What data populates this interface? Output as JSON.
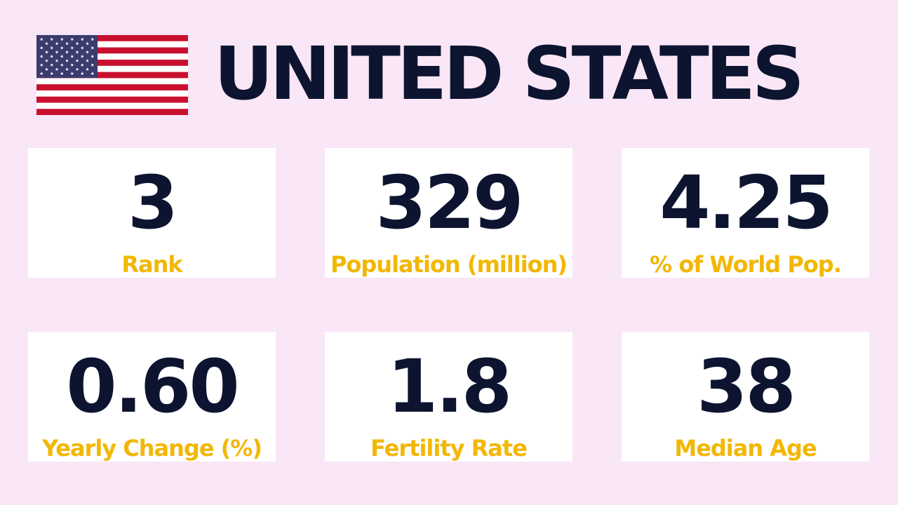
{
  "header": {
    "title": "UNITED STATES",
    "flag_icon": "us-flag-icon"
  },
  "stats": [
    {
      "value": "3",
      "label": "Rank"
    },
    {
      "value": "329",
      "label": "Population (million)"
    },
    {
      "value": "4.25",
      "label": "% of World Pop."
    },
    {
      "value": "0.60",
      "label": "Yearly Change (%)"
    },
    {
      "value": "1.8",
      "label": "Fertility Rate"
    },
    {
      "value": "38",
      "label": "Median Age"
    }
  ],
  "colors": {
    "background": "#f9e6f6",
    "value_text": "#0d1430",
    "label_text": "#f2b705",
    "flag_red": "#c8102e",
    "flag_blue": "#3c3b6e",
    "flag_white": "#ffffff"
  }
}
